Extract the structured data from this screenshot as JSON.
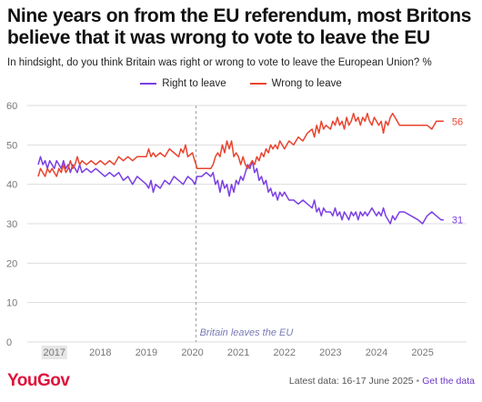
{
  "header": {
    "title": "Nine years on from the EU referendum, most Britons believe that it was wrong to vote to leave the EU",
    "subtitle": "In hindsight, do you think Britain was right or wrong to vote to leave the European Union? %"
  },
  "footer": {
    "brand": "YouGov",
    "latest_data": "Latest data: 16-17 June 2025",
    "separator": "•",
    "link": "Get the data"
  },
  "colors": {
    "right_to_leave": "#7b3fe4",
    "wrong_to_leave": "#e8442e",
    "annotation": "#7a7ab8",
    "grid": "#dddddd",
    "axis_text": "#777777"
  },
  "chart_data": {
    "type": "line",
    "ylim": [
      0,
      60
    ],
    "yticks": [
      0,
      10,
      20,
      30,
      40,
      50,
      60
    ],
    "xlim": [
      2016.65,
      2025.6
    ],
    "xticks": [
      2017,
      2018,
      2019,
      2020,
      2021,
      2022,
      2023,
      2024,
      2025
    ],
    "xtick_labels": [
      "2017",
      "2018",
      "2019",
      "2020",
      "2021",
      "2022",
      "2023",
      "2024",
      "2025"
    ],
    "highlight_tick": "2017",
    "grid": true,
    "legend_position": "top-center",
    "annotations": [
      {
        "x": 2020.08,
        "text": "Britain leaves the EU"
      }
    ],
    "end_labels": {
      "Right to leave": "31",
      "Wrong to leave": "56"
    },
    "series": [
      {
        "name": "Right to leave",
        "points": [
          [
            2016.65,
            45
          ],
          [
            2016.7,
            47
          ],
          [
            2016.75,
            45
          ],
          [
            2016.8,
            46
          ],
          [
            2016.85,
            44
          ],
          [
            2016.9,
            46
          ],
          [
            2016.95,
            45
          ],
          [
            2017.0,
            44
          ],
          [
            2017.05,
            46
          ],
          [
            2017.1,
            45
          ],
          [
            2017.15,
            44
          ],
          [
            2017.2,
            46
          ],
          [
            2017.25,
            44
          ],
          [
            2017.3,
            45
          ],
          [
            2017.35,
            43
          ],
          [
            2017.4,
            45
          ],
          [
            2017.45,
            44
          ],
          [
            2017.5,
            43
          ],
          [
            2017.55,
            45
          ],
          [
            2017.6,
            43
          ],
          [
            2017.7,
            44
          ],
          [
            2017.8,
            43
          ],
          [
            2017.9,
            44
          ],
          [
            2018.0,
            43
          ],
          [
            2018.1,
            42
          ],
          [
            2018.2,
            43
          ],
          [
            2018.3,
            42
          ],
          [
            2018.4,
            43
          ],
          [
            2018.5,
            41
          ],
          [
            2018.6,
            42
          ],
          [
            2018.7,
            40
          ],
          [
            2018.8,
            42
          ],
          [
            2018.9,
            41
          ],
          [
            2019.0,
            40
          ],
          [
            2019.05,
            39
          ],
          [
            2019.1,
            41
          ],
          [
            2019.15,
            38
          ],
          [
            2019.2,
            40
          ],
          [
            2019.3,
            39
          ],
          [
            2019.4,
            41
          ],
          [
            2019.5,
            40
          ],
          [
            2019.6,
            42
          ],
          [
            2019.7,
            41
          ],
          [
            2019.8,
            40
          ],
          [
            2019.9,
            42
          ],
          [
            2020.0,
            41
          ],
          [
            2020.05,
            40
          ],
          [
            2020.08,
            41
          ],
          [
            2020.1,
            42
          ],
          [
            2020.2,
            42
          ],
          [
            2020.3,
            43
          ],
          [
            2020.4,
            42
          ],
          [
            2020.45,
            43
          ],
          [
            2020.5,
            40
          ],
          [
            2020.55,
            41
          ],
          [
            2020.6,
            38
          ],
          [
            2020.65,
            41
          ],
          [
            2020.7,
            39
          ],
          [
            2020.75,
            40
          ],
          [
            2020.8,
            37
          ],
          [
            2020.85,
            40
          ],
          [
            2020.9,
            38
          ],
          [
            2020.95,
            41
          ],
          [
            2021.0,
            40
          ],
          [
            2021.05,
            42
          ],
          [
            2021.1,
            41
          ],
          [
            2021.15,
            43
          ],
          [
            2021.2,
            45
          ],
          [
            2021.25,
            44
          ],
          [
            2021.3,
            46
          ],
          [
            2021.35,
            43
          ],
          [
            2021.4,
            44
          ],
          [
            2021.45,
            41
          ],
          [
            2021.5,
            42
          ],
          [
            2021.55,
            40
          ],
          [
            2021.6,
            41
          ],
          [
            2021.65,
            38
          ],
          [
            2021.7,
            39
          ],
          [
            2021.75,
            37
          ],
          [
            2021.8,
            38
          ],
          [
            2021.85,
            36
          ],
          [
            2021.9,
            38
          ],
          [
            2021.95,
            37
          ],
          [
            2022.0,
            38
          ],
          [
            2022.05,
            37
          ],
          [
            2022.1,
            36
          ],
          [
            2022.2,
            36
          ],
          [
            2022.3,
            35
          ],
          [
            2022.4,
            36
          ],
          [
            2022.5,
            35
          ],
          [
            2022.6,
            34
          ],
          [
            2022.65,
            36
          ],
          [
            2022.7,
            33
          ],
          [
            2022.75,
            34
          ],
          [
            2022.8,
            32
          ],
          [
            2022.85,
            34
          ],
          [
            2022.9,
            33
          ],
          [
            2023.0,
            33
          ],
          [
            2023.05,
            32
          ],
          [
            2023.1,
            34
          ],
          [
            2023.15,
            32
          ],
          [
            2023.2,
            33
          ],
          [
            2023.25,
            31
          ],
          [
            2023.3,
            33
          ],
          [
            2023.35,
            32
          ],
          [
            2023.4,
            31
          ],
          [
            2023.45,
            33
          ],
          [
            2023.5,
            32
          ],
          [
            2023.55,
            33
          ],
          [
            2023.6,
            31
          ],
          [
            2023.65,
            33
          ],
          [
            2023.7,
            32
          ],
          [
            2023.75,
            33
          ],
          [
            2023.8,
            32
          ],
          [
            2023.85,
            33
          ],
          [
            2023.9,
            34
          ],
          [
            2023.95,
            33
          ],
          [
            2024.0,
            32
          ],
          [
            2024.05,
            33
          ],
          [
            2024.1,
            32
          ],
          [
            2024.15,
            34
          ],
          [
            2024.2,
            32
          ],
          [
            2024.25,
            31
          ],
          [
            2024.3,
            30
          ],
          [
            2024.35,
            32
          ],
          [
            2024.4,
            31
          ],
          [
            2024.45,
            32
          ],
          [
            2024.5,
            33
          ],
          [
            2024.6,
            33
          ],
          [
            2024.75,
            32
          ],
          [
            2024.9,
            31
          ],
          [
            2025.0,
            30
          ],
          [
            2025.1,
            32
          ],
          [
            2025.2,
            33
          ],
          [
            2025.3,
            32
          ],
          [
            2025.4,
            31
          ],
          [
            2025.46,
            31
          ]
        ]
      },
      {
        "name": "Wrong to leave",
        "points": [
          [
            2016.65,
            42
          ],
          [
            2016.7,
            44
          ],
          [
            2016.75,
            43
          ],
          [
            2016.8,
            42
          ],
          [
            2016.85,
            44
          ],
          [
            2016.9,
            43
          ],
          [
            2016.95,
            44
          ],
          [
            2017.0,
            43
          ],
          [
            2017.05,
            42
          ],
          [
            2017.1,
            44
          ],
          [
            2017.15,
            43
          ],
          [
            2017.2,
            45
          ],
          [
            2017.25,
            43
          ],
          [
            2017.3,
            44
          ],
          [
            2017.35,
            46
          ],
          [
            2017.4,
            44
          ],
          [
            2017.45,
            45
          ],
          [
            2017.5,
            47
          ],
          [
            2017.55,
            45
          ],
          [
            2017.6,
            46
          ],
          [
            2017.7,
            45
          ],
          [
            2017.8,
            46
          ],
          [
            2017.9,
            45
          ],
          [
            2018.0,
            46
          ],
          [
            2018.1,
            45
          ],
          [
            2018.2,
            46
          ],
          [
            2018.3,
            45
          ],
          [
            2018.4,
            47
          ],
          [
            2018.5,
            46
          ],
          [
            2018.6,
            47
          ],
          [
            2018.7,
            46
          ],
          [
            2018.8,
            47
          ],
          [
            2018.9,
            47
          ],
          [
            2019.0,
            47
          ],
          [
            2019.05,
            49
          ],
          [
            2019.1,
            47
          ],
          [
            2019.15,
            48
          ],
          [
            2019.2,
            47
          ],
          [
            2019.3,
            48
          ],
          [
            2019.4,
            47
          ],
          [
            2019.5,
            49
          ],
          [
            2019.6,
            48
          ],
          [
            2019.7,
            47
          ],
          [
            2019.75,
            49
          ],
          [
            2019.8,
            48
          ],
          [
            2019.85,
            50
          ],
          [
            2019.9,
            47
          ],
          [
            2020.0,
            48
          ],
          [
            2020.05,
            46
          ],
          [
            2020.08,
            45
          ],
          [
            2020.1,
            44
          ],
          [
            2020.2,
            44
          ],
          [
            2020.3,
            44
          ],
          [
            2020.4,
            44
          ],
          [
            2020.45,
            45
          ],
          [
            2020.5,
            47
          ],
          [
            2020.55,
            48
          ],
          [
            2020.6,
            47
          ],
          [
            2020.65,
            50
          ],
          [
            2020.7,
            48
          ],
          [
            2020.75,
            51
          ],
          [
            2020.8,
            49
          ],
          [
            2020.85,
            51
          ],
          [
            2020.9,
            47
          ],
          [
            2020.95,
            48
          ],
          [
            2021.0,
            47
          ],
          [
            2021.05,
            45
          ],
          [
            2021.1,
            47
          ],
          [
            2021.15,
            45
          ],
          [
            2021.2,
            44
          ],
          [
            2021.25,
            45
          ],
          [
            2021.3,
            46
          ],
          [
            2021.35,
            45
          ],
          [
            2021.4,
            47
          ],
          [
            2021.45,
            46
          ],
          [
            2021.5,
            48
          ],
          [
            2021.55,
            47
          ],
          [
            2021.6,
            49
          ],
          [
            2021.65,
            48
          ],
          [
            2021.7,
            50
          ],
          [
            2021.75,
            49
          ],
          [
            2021.8,
            50
          ],
          [
            2021.85,
            49
          ],
          [
            2021.9,
            51
          ],
          [
            2021.95,
            50
          ],
          [
            2022.0,
            49
          ],
          [
            2022.05,
            50
          ],
          [
            2022.1,
            51
          ],
          [
            2022.2,
            50
          ],
          [
            2022.3,
            52
          ],
          [
            2022.4,
            51
          ],
          [
            2022.5,
            53
          ],
          [
            2022.6,
            54
          ],
          [
            2022.65,
            52
          ],
          [
            2022.7,
            55
          ],
          [
            2022.75,
            53
          ],
          [
            2022.8,
            56
          ],
          [
            2022.85,
            54
          ],
          [
            2022.9,
            55
          ],
          [
            2023.0,
            54
          ],
          [
            2023.05,
            56
          ],
          [
            2023.1,
            55
          ],
          [
            2023.15,
            57
          ],
          [
            2023.2,
            55
          ],
          [
            2023.25,
            56
          ],
          [
            2023.3,
            54
          ],
          [
            2023.35,
            57
          ],
          [
            2023.4,
            55
          ],
          [
            2023.45,
            56
          ],
          [
            2023.5,
            58
          ],
          [
            2023.55,
            56
          ],
          [
            2023.6,
            57
          ],
          [
            2023.65,
            55
          ],
          [
            2023.7,
            57
          ],
          [
            2023.75,
            56
          ],
          [
            2023.8,
            58
          ],
          [
            2023.85,
            56
          ],
          [
            2023.9,
            55
          ],
          [
            2023.95,
            57
          ],
          [
            2024.0,
            56
          ],
          [
            2024.05,
            55
          ],
          [
            2024.1,
            56
          ],
          [
            2024.15,
            53
          ],
          [
            2024.2,
            56
          ],
          [
            2024.25,
            55
          ],
          [
            2024.3,
            57
          ],
          [
            2024.35,
            58
          ],
          [
            2024.4,
            57
          ],
          [
            2024.45,
            56
          ],
          [
            2024.5,
            55
          ],
          [
            2024.6,
            55
          ],
          [
            2024.75,
            55
          ],
          [
            2024.9,
            55
          ],
          [
            2025.0,
            55
          ],
          [
            2025.1,
            55
          ],
          [
            2025.2,
            54
          ],
          [
            2025.3,
            56
          ],
          [
            2025.4,
            56
          ],
          [
            2025.46,
            56
          ]
        ]
      }
    ]
  }
}
